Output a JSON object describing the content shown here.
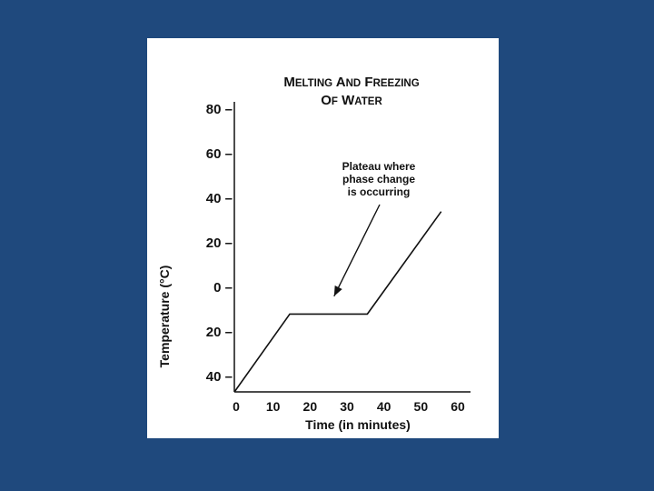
{
  "colors": {
    "background": "#1f497d",
    "card": "#ffffff",
    "ink": "#111111"
  },
  "chart_data": {
    "type": "line",
    "title_lines": [
      "Melting And Freezing",
      "Of Water"
    ],
    "xlabel": "Time (in minutes)",
    "ylabel": "Temperature (°C)",
    "x_ticks": [
      0,
      10,
      20,
      30,
      40,
      50,
      60
    ],
    "x_tick_labels": [
      "0",
      "10",
      "20",
      "30",
      "40",
      "50",
      "60"
    ],
    "y_ticks": [
      80,
      60,
      40,
      20,
      0,
      -20,
      -40
    ],
    "y_tick_labels": [
      "80 –",
      "60 –",
      "40 –",
      "20 –",
      "0 –",
      "20 –",
      "40 –"
    ],
    "xlim": [
      0,
      60
    ],
    "ylim": [
      -40,
      80
    ],
    "grid": false,
    "series": [
      {
        "x": [
          0,
          15,
          36,
          56
        ],
        "y": [
          -47,
          -12,
          -12,
          34
        ]
      }
    ],
    "annotation": {
      "lines": [
        "Plateau where",
        "phase change",
        "is occurring"
      ],
      "points_to": {
        "x": 27,
        "y": -4
      }
    }
  }
}
